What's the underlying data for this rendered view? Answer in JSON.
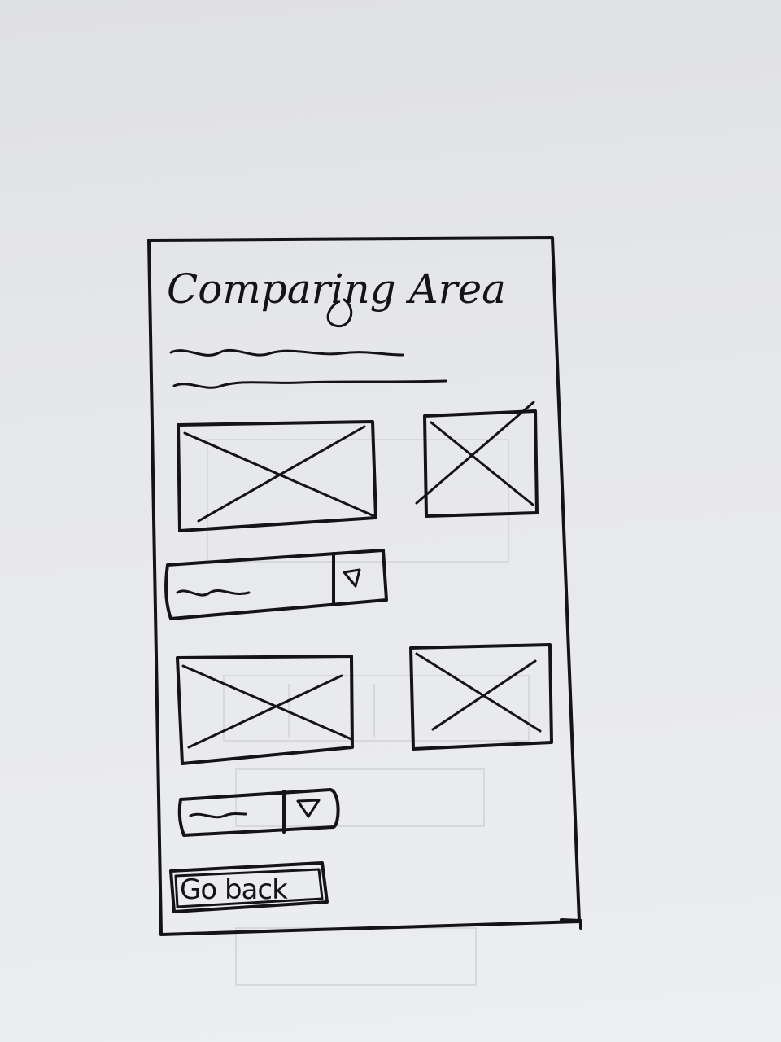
{
  "screen": {
    "title": "Comparing Area",
    "description_lines": [
      "",
      ""
    ]
  },
  "compare_rows": [
    {
      "main_image": "image-placeholder",
      "side_image": "image-placeholder",
      "dropdown": {
        "value": "",
        "icon": "triangle-down-icon"
      }
    },
    {
      "main_image": "image-placeholder",
      "side_image": "image-placeholder",
      "dropdown": {
        "value": "",
        "icon": "triangle-down-icon"
      }
    }
  ],
  "footer": {
    "back_label": "Go back"
  },
  "colors": {
    "ink": "#151318",
    "paper": "#e7e8ec"
  }
}
